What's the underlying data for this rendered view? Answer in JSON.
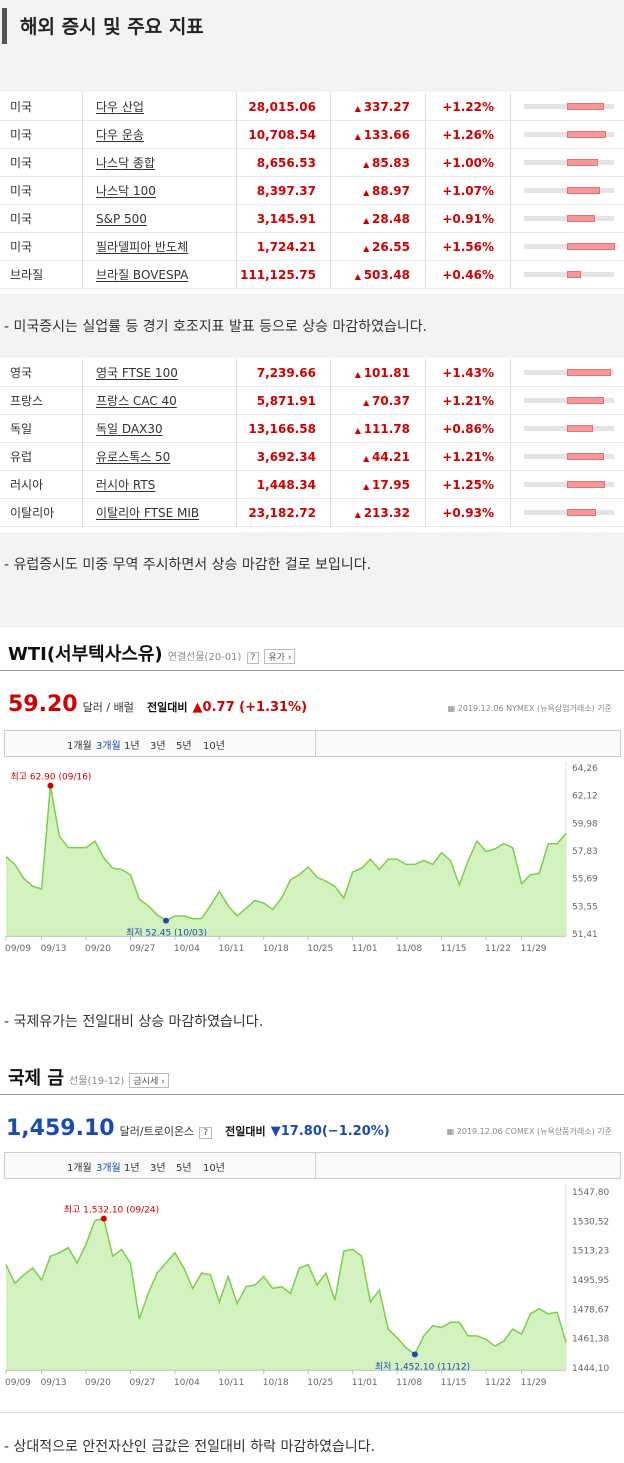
{
  "header": {
    "title": "해외 증시 및 주요 지표"
  },
  "us_table": [
    {
      "country": "미국",
      "name": "다우 산업",
      "value": "28,015.06",
      "change": "337.27",
      "pct": "+1.22%",
      "level": 0.55
    },
    {
      "country": "미국",
      "name": "다우 운송",
      "value": "10,708.54",
      "change": "133.66",
      "pct": "+1.26%",
      "level": 0.57
    },
    {
      "country": "미국",
      "name": "나스닥 종합",
      "value": "8,656.53",
      "change": "85.83",
      "pct": "+1.00%",
      "level": 0.45
    },
    {
      "country": "미국",
      "name": "나스닥 100",
      "value": "8,397.37",
      "change": "88.97",
      "pct": "+1.07%",
      "level": 0.48
    },
    {
      "country": "미국",
      "name": "S&P 500",
      "value": "3,145.91",
      "change": "28.48",
      "pct": "+0.91%",
      "level": 0.41
    },
    {
      "country": "미국",
      "name": "필라델피아 반도체",
      "value": "1,724.21",
      "change": "26.55",
      "pct": "+1.56%",
      "level": 0.7
    },
    {
      "country": "브라질",
      "name": "브라질 BOVESPA",
      "value": "111,125.75",
      "change": "503.48",
      "pct": "+0.46%",
      "level": 0.21
    }
  ],
  "note_us": "- 미국증시는 실업률 등 경기 호조지표 발표 등으로 상승 마감하였습니다.",
  "eu_table": [
    {
      "country": "영국",
      "name": "영국 FTSE 100",
      "value": "7,239.66",
      "change": "101.81",
      "pct": "+1.43%",
      "level": 0.64
    },
    {
      "country": "프랑스",
      "name": "프랑스 CAC 40",
      "value": "5,871.91",
      "change": "70.37",
      "pct": "+1.21%",
      "level": 0.54
    },
    {
      "country": "독일",
      "name": "독일 DAX30",
      "value": "13,166.58",
      "change": "111.78",
      "pct": "+0.86%",
      "level": 0.38
    },
    {
      "country": "유럽",
      "name": "유로스톡스 50",
      "value": "3,692.34",
      "change": "44.21",
      "pct": "+1.21%",
      "level": 0.54
    },
    {
      "country": "러시아",
      "name": "러시아 RTS",
      "value": "1,448.34",
      "change": "17.95",
      "pct": "+1.25%",
      "level": 0.56
    },
    {
      "country": "이탈리아",
      "name": "이탈리아 FTSE MIB",
      "value": "23,182.72",
      "change": "213.32",
      "pct": "+0.93%",
      "level": 0.42
    }
  ],
  "note_eu": "- 유럽증시도 미중 무역 주시하면서 상승 마감한 걸로 보입니다.",
  "oil": {
    "title": "WTI(서부텍사스유)",
    "sub": "연결선물(20-01)",
    "help": "?",
    "tag": "유가",
    "price": "59.20",
    "unit": "달러 / 배럴",
    "cmp_label": "전일대비",
    "cmp_value": "▲0.77 (+1.31%)",
    "source": "2019.12.06  NYMEX (뉴욕상업거래소) 기준",
    "periods": [
      "1개월",
      "3개월",
      "1년",
      "3년",
      "5년",
      "10년"
    ],
    "high_label": "최고 62.90 (09/16)",
    "low_label": "최저 52.45 (10/03)"
  },
  "note_oil": "- 국제유가는 전일대비 상승 마감하였습니다.",
  "gold": {
    "title": "국제 금",
    "sub": "선물(19-12)",
    "tag": "금시세",
    "price": "1,459.10",
    "unit": "달러/트로이온스",
    "help": "?",
    "cmp_label": "전일대비",
    "cmp_value": "▼17.80(−1.20%)",
    "source": "2019.12.06  COMEX (뉴욕상품거래소) 기준",
    "periods": [
      "1개월",
      "3개월",
      "1년",
      "3년",
      "5년",
      "10년"
    ],
    "high_label": "최고 1,532.10 (09/24)",
    "low_label": "최저 1,452.10 (11/12)"
  },
  "note_gold": "- 상대적으로 안전자산인 금값은 전일대비 하락 마감하였습니다.",
  "colors": {
    "up": "#d20000",
    "down": "#1a4cb0",
    "area": "#cdf0b4",
    "line": "#7ccf4a"
  },
  "chart_data": [
    {
      "type": "area",
      "title": "WTI(서부텍사스유)",
      "x": [
        "09/09",
        "09/10",
        "09/11",
        "09/12",
        "09/13",
        "09/16",
        "09/17",
        "09/18",
        "09/19",
        "09/20",
        "09/23",
        "09/24",
        "09/25",
        "09/26",
        "09/27",
        "09/30",
        "10/01",
        "10/02",
        "10/03",
        "10/04",
        "10/07",
        "10/08",
        "10/09",
        "10/10",
        "10/11",
        "10/14",
        "10/15",
        "10/16",
        "10/17",
        "10/18",
        "10/21",
        "10/22",
        "10/23",
        "10/24",
        "10/25",
        "10/28",
        "10/29",
        "10/30",
        "10/31",
        "11/01",
        "11/04",
        "11/05",
        "11/06",
        "11/07",
        "11/08",
        "11/11",
        "11/12",
        "11/13",
        "11/14",
        "11/15",
        "11/18",
        "11/19",
        "11/20",
        "11/21",
        "11/22",
        "11/25",
        "11/26",
        "11/27",
        "11/29",
        "12/02",
        "12/03",
        "12/04",
        "12/05",
        "12/06"
      ],
      "xticks": [
        "09/09",
        "09/13",
        "09/20",
        "09/27",
        "10/04",
        "10/11",
        "10/18",
        "10/25",
        "11/01",
        "11/08",
        "11/15",
        "11/22",
        "11/29"
      ],
      "y": [
        57.4,
        56.8,
        55.7,
        55.1,
        54.9,
        62.9,
        59.0,
        58.1,
        58.1,
        58.1,
        58.6,
        57.3,
        56.5,
        56.4,
        56.0,
        54.1,
        53.6,
        52.9,
        52.45,
        52.8,
        52.8,
        52.6,
        52.6,
        53.6,
        54.7,
        53.6,
        52.8,
        53.4,
        54.0,
        53.8,
        53.3,
        54.2,
        55.6,
        56.0,
        56.6,
        55.8,
        55.5,
        55.1,
        54.2,
        56.2,
        56.5,
        57.2,
        56.4,
        57.2,
        57.2,
        56.8,
        56.8,
        57.1,
        56.8,
        57.7,
        57.1,
        55.2,
        57.1,
        58.6,
        57.8,
        58.0,
        58.4,
        58.1,
        55.3,
        56.0,
        56.1,
        58.4,
        58.4,
        59.2
      ],
      "yticks": [
        51.41,
        53.55,
        55.69,
        57.83,
        59.98,
        62.12,
        64.26
      ],
      "ylim": [
        51.41,
        64.26
      ]
    },
    {
      "type": "area",
      "title": "국제 금",
      "x": [
        "09/09",
        "09/10",
        "09/11",
        "09/12",
        "09/13",
        "09/16",
        "09/17",
        "09/18",
        "09/19",
        "09/20",
        "09/23",
        "09/24",
        "09/25",
        "09/26",
        "09/27",
        "09/30",
        "10/01",
        "10/02",
        "10/03",
        "10/04",
        "10/07",
        "10/08",
        "10/09",
        "10/10",
        "10/11",
        "10/14",
        "10/15",
        "10/16",
        "10/17",
        "10/18",
        "10/21",
        "10/22",
        "10/23",
        "10/24",
        "10/25",
        "10/28",
        "10/29",
        "10/30",
        "10/31",
        "11/01",
        "11/04",
        "11/05",
        "11/06",
        "11/07",
        "11/08",
        "11/11",
        "11/12",
        "11/13",
        "11/14",
        "11/15",
        "11/18",
        "11/19",
        "11/20",
        "11/21",
        "11/22",
        "11/25",
        "11/26",
        "11/27",
        "11/29",
        "12/02",
        "12/03",
        "12/04",
        "12/05",
        "12/06"
      ],
      "xticks": [
        "09/09",
        "09/13",
        "09/20",
        "09/27",
        "10/04",
        "10/11",
        "10/18",
        "10/25",
        "11/01",
        "11/08",
        "11/15",
        "11/22",
        "11/29"
      ],
      "y": [
        1505,
        1494,
        1499,
        1503,
        1496,
        1510,
        1512,
        1515,
        1506,
        1517,
        1531,
        1532.1,
        1510,
        1514,
        1506,
        1473,
        1488,
        1500,
        1506,
        1512,
        1503,
        1491,
        1500,
        1499,
        1483,
        1498,
        1482,
        1492,
        1493,
        1498,
        1491,
        1492,
        1488,
        1503,
        1505,
        1493,
        1500,
        1484,
        1513,
        1514,
        1510,
        1483,
        1490,
        1467,
        1462,
        1456,
        1452.1,
        1463,
        1469,
        1468,
        1471,
        1471,
        1463,
        1463,
        1461,
        1457,
        1460,
        1467,
        1464,
        1476,
        1479,
        1476,
        1477,
        1459.1
      ],
      "yticks": [
        1444.1,
        1461.38,
        1478.67,
        1495.95,
        1513.23,
        1530.52,
        1547.8
      ],
      "ylim": [
        1444.1,
        1547.8
      ]
    }
  ]
}
